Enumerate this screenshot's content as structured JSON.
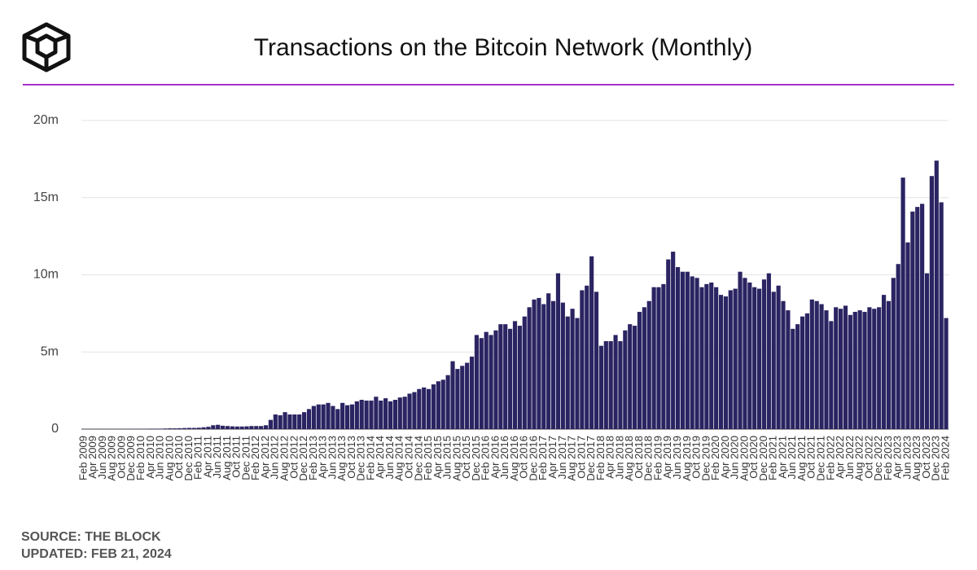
{
  "chart_data": {
    "type": "bar",
    "title": "Transactions on the Bitcoin Network (Monthly)",
    "source": "SOURCE: THE BLOCK",
    "updated": "UPDATED: FEB 21, 2024",
    "color": "#2b2462",
    "grid": true,
    "ylim": [
      0,
      20
    ],
    "yticks": [
      0,
      {
        "value": 5,
        "label": "5m"
      },
      {
        "value": 10,
        "label": "10m"
      },
      {
        "value": 15,
        "label": "15m"
      },
      {
        "value": 20,
        "label": "20m"
      }
    ],
    "categories": [
      "Feb 2009",
      null,
      "Apr 2009",
      null,
      "Jun 2009",
      null,
      "Aug 2009",
      null,
      "Oct 2009",
      null,
      "Dec 2009",
      null,
      "Feb 2010",
      null,
      "Apr 2010",
      null,
      "Jun 2010",
      null,
      "Aug 2010",
      null,
      "Oct 2010",
      null,
      "Dec 2010",
      null,
      "Feb 2011",
      null,
      "Apr 2011",
      null,
      "Jun 2011",
      null,
      "Aug 2011",
      null,
      "Oct 2011",
      null,
      "Dec 2011",
      null,
      "Feb 2012",
      null,
      "Apr 2012",
      null,
      "Jun 2012",
      null,
      "Aug 2012",
      null,
      "Oct 2012",
      null,
      "Dec 2012",
      null,
      "Feb 2013",
      null,
      "Apr 2013",
      null,
      "Jun 2013",
      null,
      "Aug 2013",
      null,
      "Oct 2013",
      null,
      "Dec 2013",
      null,
      "Feb 2014",
      null,
      "Apr 2014",
      null,
      "Jun 2014",
      null,
      "Aug 2014",
      null,
      "Oct 2014",
      null,
      "Dec 2014",
      null,
      "Feb 2015",
      null,
      "Apr 2015",
      null,
      "Jun 2015",
      null,
      "Aug 2015",
      null,
      "Oct 2015",
      null,
      "Dec 2015",
      null,
      "Feb 2016",
      null,
      "Apr 2016",
      null,
      "Jun 2016",
      null,
      "Aug 2016",
      null,
      "Oct 2016",
      null,
      "Dec 2016",
      null,
      "Feb 2017",
      null,
      "Apr 2017",
      null,
      "Jun 2017",
      null,
      "Aug 2017",
      null,
      "Oct 2017",
      null,
      "Dec 2017",
      null,
      "Feb 2018",
      null,
      "Apr 2018",
      null,
      "Jun 2018",
      null,
      "Aug 2018",
      null,
      "Oct 2018",
      null,
      "Dec 2018",
      null,
      "Feb 2019",
      null,
      "Apr 2019",
      null,
      "Jun 2019",
      null,
      "Aug 2019",
      null,
      "Oct 2019",
      null,
      "Dec 2019",
      null,
      "Feb 2020",
      null,
      "Apr 2020",
      null,
      "Jun 2020",
      null,
      "Aug 2020",
      null,
      "Oct 2020",
      null,
      "Dec 2020",
      null,
      "Feb 2021",
      null,
      "Apr 2021",
      null,
      "Jun 2021",
      null,
      "Aug 2021",
      null,
      "Oct 2021",
      null,
      "Dec 2021",
      null,
      "Feb 2022",
      null,
      "Apr 2022",
      null,
      "Jun 2022",
      null,
      "Aug 2022",
      null,
      "Oct 2022",
      null,
      "Dec 2022",
      null,
      "Feb 2023",
      null,
      "Apr 2023",
      null,
      "Jun 2023",
      null,
      "Aug 2023",
      null,
      "Oct 2023",
      null,
      "Dec 2023",
      null,
      "Feb 2024"
    ],
    "values": [
      0.01,
      0.01,
      0.01,
      0.01,
      0.01,
      0.01,
      0.01,
      0.01,
      0.01,
      0.01,
      0.01,
      0.02,
      0.02,
      0.02,
      0.03,
      0.03,
      0.03,
      0.04,
      0.05,
      0.05,
      0.06,
      0.07,
      0.08,
      0.08,
      0.09,
      0.12,
      0.15,
      0.25,
      0.28,
      0.22,
      0.2,
      0.18,
      0.17,
      0.17,
      0.18,
      0.2,
      0.2,
      0.2,
      0.25,
      0.6,
      0.95,
      0.9,
      1.1,
      0.95,
      0.95,
      0.95,
      1.1,
      1.3,
      1.5,
      1.6,
      1.6,
      1.7,
      1.5,
      1.3,
      1.7,
      1.55,
      1.6,
      1.8,
      1.9,
      1.85,
      1.85,
      2.1,
      1.85,
      2.0,
      1.8,
      1.9,
      2.05,
      2.1,
      2.3,
      2.4,
      2.6,
      2.7,
      2.6,
      2.9,
      3.1,
      3.2,
      3.5,
      4.4,
      3.9,
      4.1,
      4.3,
      4.7,
      6.1,
      5.9,
      6.3,
      6.1,
      6.4,
      6.8,
      6.8,
      6.5,
      7.0,
      6.7,
      7.3,
      7.9,
      8.4,
      8.5,
      8.1,
      8.8,
      8.3,
      10.1,
      8.2,
      7.3,
      7.8,
      7.2,
      9.0,
      9.3,
      11.2,
      8.9,
      5.4,
      5.7,
      5.7,
      6.1,
      5.7,
      6.4,
      6.8,
      6.7,
      7.6,
      7.9,
      8.3,
      9.2,
      9.2,
      9.4,
      11.0,
      11.5,
      10.5,
      10.2,
      10.2,
      9.9,
      9.8,
      9.2,
      9.4,
      9.5,
      9.2,
      8.7,
      8.6,
      9.0,
      9.1,
      10.2,
      9.8,
      9.5,
      9.2,
      9.1,
      9.7,
      10.1,
      8.9,
      9.3,
      8.3,
      7.7,
      6.5,
      6.8,
      7.3,
      7.5,
      8.4,
      8.3,
      8.1,
      7.7,
      7.0,
      7.9,
      7.8,
      8.0,
      7.4,
      7.6,
      7.7,
      7.6,
      7.9,
      7.8,
      7.9,
      8.7,
      8.3,
      9.8,
      10.7,
      16.3,
      12.1,
      14.1,
      14.4,
      14.6,
      10.1,
      16.4,
      17.4,
      14.7,
      7.2
    ]
  }
}
